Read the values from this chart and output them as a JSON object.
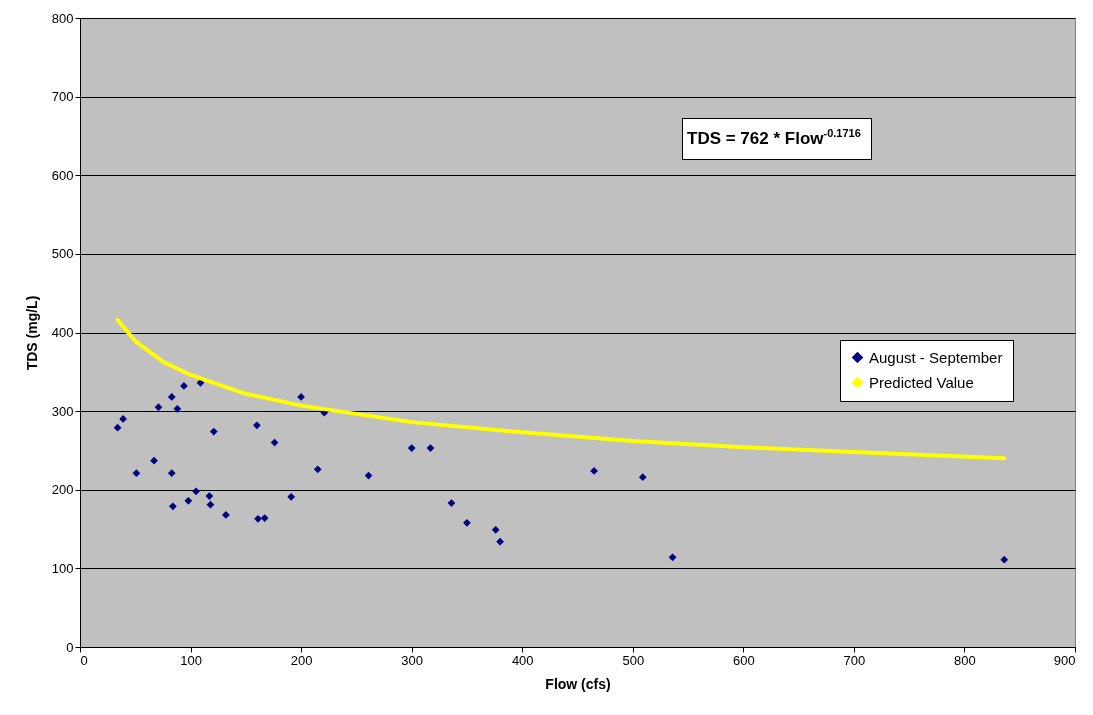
{
  "chart_data": {
    "type": "scatter",
    "xlabel": "Flow (cfs)",
    "ylabel": "TDS (mg/L)",
    "xlim": [
      0,
      900
    ],
    "xticks": [
      0,
      100,
      200,
      300,
      400,
      500,
      600,
      700,
      800,
      900
    ],
    "ylim": [
      0,
      800
    ],
    "yticks": [
      0,
      100,
      200,
      300,
      400,
      500,
      600,
      700,
      800
    ],
    "grid": "y",
    "legend": "right",
    "annotations": [
      "TDS = 762 * Flow$^{-0.1716}$"
    ],
    "series": [
      {
        "name": "August - September",
        "marker": "diamond",
        "color": "#000080",
        "x": [
          34,
          39,
          51,
          67,
          71,
          83,
          83,
          84,
          88,
          94,
          98,
          105,
          109,
          117,
          118,
          121,
          132,
          160,
          161,
          167,
          176,
          191,
          200,
          215,
          221,
          261,
          300,
          317,
          336,
          350,
          376,
          380,
          465,
          509,
          536,
          836
        ],
        "values": [
          279,
          290,
          221,
          237,
          305,
          318,
          221,
          179,
          303,
          332,
          186,
          198,
          336,
          192,
          181,
          274,
          168,
          282,
          163,
          164,
          260,
          191,
          318,
          226,
          298,
          218,
          253,
          253,
          183,
          158,
          149,
          134,
          224,
          216,
          114,
          111
        ]
      },
      {
        "name": "Predicted Value",
        "type": "line",
        "line_style": "solid",
        "color": "#ffff00",
        "x": [
          34,
          50,
          75,
          100,
          150,
          200,
          300,
          400,
          500,
          600,
          700,
          836
        ],
        "values": [
          416,
          389,
          363,
          346,
          322,
          307,
          286,
          273,
          262,
          254,
          248,
          240
        ]
      }
    ]
  }
}
